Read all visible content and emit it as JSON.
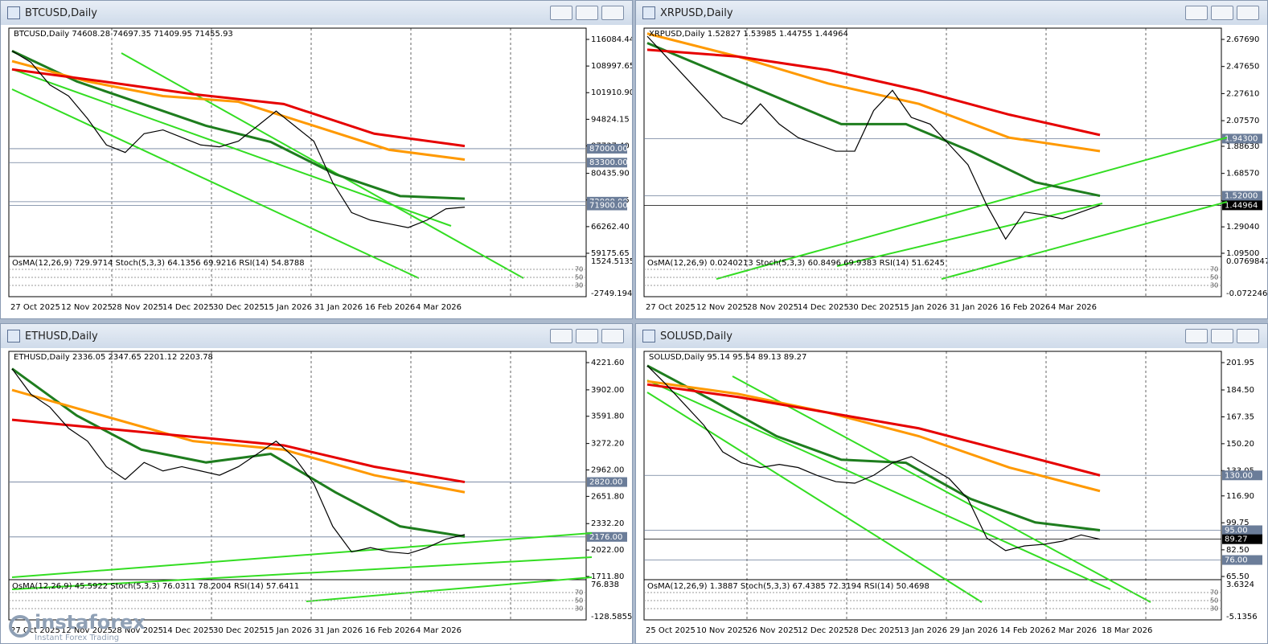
{
  "windows": [
    {
      "title": "BTCUSD,Daily",
      "info": "BTCUSD,Daily  74608.28 74697.35 71409.95 71455.93",
      "price_ticks": [
        "116084.44",
        "108997.65",
        "101910.90",
        "94824.15",
        "87737.40",
        "80435.90",
        "73349.15",
        "66262.40",
        "59175.65"
      ],
      "levels": [
        {
          "label": "87000.00",
          "color": "#6b7d99"
        },
        {
          "label": "83300.00",
          "color": "#6b7d99"
        },
        {
          "label": "72900.00",
          "color": "#6b7d99"
        },
        {
          "label": "71900.00",
          "color": "#6b7d99"
        }
      ],
      "indicator_info": "OsMA(12,26,9) 729.9714  Stoch(5,3,3) 64.1356 69.9216  RSI(14) 54.8788",
      "indicator_ticks": [
        "1524.5135",
        "-2749.1944"
      ],
      "osc_levels": [
        "70",
        "50",
        "30"
      ],
      "dates": [
        "27 Oct 2025",
        "12 Nov 2025",
        "28 Nov 2025",
        "14 Dec 2025",
        "30 Dec 2025",
        "15 Jan 2026",
        "31 Jan 2026",
        "16 Feb 2026",
        "4 Mar 2026"
      ],
      "close": [
        113000,
        110000,
        104000,
        101000,
        95000,
        88000,
        86000,
        91000,
        92000,
        90000,
        88000,
        87500,
        89000,
        93000,
        97000,
        93000,
        89000,
        78000,
        70000,
        68000,
        67000,
        66000,
        68000,
        71000,
        71455.93
      ],
      "ma": [
        {
          "color": "#1e7d1e",
          "values": [
            113000,
            104900,
            99000,
            93100,
            88800,
            80200,
            74400,
            73700
          ]
        },
        {
          "color": "#ff9900",
          "values": [
            110300,
            104900,
            101000,
            99500,
            93100,
            86700,
            84100
          ]
        },
        {
          "color": "#e60000",
          "values": [
            108100,
            104900,
            101500,
            98900,
            91000,
            87700
          ]
        }
      ]
    },
    {
      "title": "XRPUSD,Daily",
      "info": "XRPUSD,Daily  1.52827 1.53985 1.44755 1.44964",
      "price_ticks": [
        "2.67690",
        "2.47650",
        "2.27610",
        "2.07570",
        "1.88630",
        "1.68570",
        "1.48530",
        "1.29040",
        "1.09500"
      ],
      "levels": [
        {
          "label": "1.94300",
          "color": "#6b7d99"
        },
        {
          "label": "1.52000",
          "color": "#6b7d99"
        },
        {
          "label": "1.44964",
          "color": "#000000"
        }
      ],
      "indicator_info": "OsMA(12,26,9) 0.0240213  Stoch(5,3,3) 60.8496 69.9383  RSI(14) 51.6245",
      "indicator_ticks": [
        "0.0769847",
        "-0.072246"
      ],
      "osc_levels": [
        "70",
        "50",
        "30"
      ],
      "dates": [
        "27 Oct 2025",
        "12 Nov 2025",
        "28 Nov 2025",
        "14 Dec 2025",
        "30 Dec 2025",
        "15 Jan 2026",
        "31 Jan 2026",
        "16 Feb 2026",
        "4 Mar 2026"
      ],
      "close": [
        2.7,
        2.55,
        2.4,
        2.25,
        2.1,
        2.05,
        2.2,
        2.05,
        1.95,
        1.9,
        1.85,
        1.85,
        2.15,
        2.3,
        2.1,
        2.05,
        1.9,
        1.75,
        1.45,
        1.2,
        1.4,
        1.38,
        1.35,
        1.4,
        1.44964
      ],
      "ma": [
        {
          "color": "#1e7d1e",
          "values": [
            2.65,
            2.45,
            2.25,
            2.05,
            2.05,
            1.85,
            1.62,
            1.52
          ]
        },
        {
          "color": "#ff9900",
          "values": [
            2.72,
            2.55,
            2.35,
            2.2,
            1.95,
            1.85
          ]
        },
        {
          "color": "#e60000",
          "values": [
            2.6,
            2.55,
            2.45,
            2.3,
            2.12,
            1.97
          ]
        }
      ]
    },
    {
      "title": "ETHUSD,Daily",
      "info": "ETHUSD,Daily  2336.05 2347.65 2201.12 2203.78",
      "price_ticks": [
        "4221.60",
        "3902.00",
        "3591.80",
        "3272.20",
        "2962.00",
        "2651.80",
        "2332.20",
        "2022.00",
        "1711.80"
      ],
      "levels": [
        {
          "label": "2820.00",
          "color": "#6b7d99"
        },
        {
          "label": "2176.00",
          "color": "#6b7d99"
        }
      ],
      "indicator_info": "OsMA(12,26,9) 45.5922  Stoch(5,3,3) 76.0311 78.2004  RSI(14) 57.6411",
      "indicator_ticks": [
        "76.838",
        "-128.5855"
      ],
      "osc_levels": [
        "70",
        "50",
        "30"
      ],
      "dates": [
        "27 Oct 2025",
        "12 Nov 2025",
        "28 Nov 2025",
        "14 Dec 2025",
        "30 Dec 2025",
        "15 Jan 2026",
        "31 Jan 2026",
        "16 Feb 2026",
        "4 Mar 2026"
      ],
      "close": [
        4150,
        3850,
        3700,
        3450,
        3300,
        3000,
        2850,
        3050,
        2950,
        3000,
        2950,
        2900,
        3000,
        3150,
        3300,
        3100,
        2800,
        2300,
        2000,
        2050,
        2000,
        1980,
        2050,
        2150,
        2203.78
      ],
      "ma": [
        {
          "color": "#1e7d1e",
          "values": [
            4150,
            3600,
            3200,
            3050,
            3150,
            2700,
            2300,
            2180
          ]
        },
        {
          "color": "#ff9900",
          "values": [
            3900,
            3600,
            3300,
            3200,
            2900,
            2700
          ]
        },
        {
          "color": "#e60000",
          "values": [
            3550,
            3450,
            3350,
            3250,
            3000,
            2820
          ]
        }
      ],
      "watermark": {
        "brand": "instaforex",
        "tagline": "Instant Forex Trading"
      }
    },
    {
      "title": "SOLUSD,Daily",
      "info": "SOLUSD,Daily  95.14 95.54 89.13 89.27",
      "price_ticks": [
        "201.95",
        "184.50",
        "167.35",
        "150.20",
        "133.05",
        "116.90",
        "99.75",
        "82.50",
        "65.50"
      ],
      "levels": [
        {
          "label": "130.00",
          "color": "#6b7d99"
        },
        {
          "label": "95.00",
          "color": "#6b7d99"
        },
        {
          "label": "89.27",
          "color": "#000000"
        },
        {
          "label": "76.00",
          "color": "#6b7d99"
        }
      ],
      "indicator_info": "OsMA(12,26,9) 1.3887  Stoch(5,3,3) 67.4385 72.3194  RSI(14) 50.4698",
      "indicator_ticks": [
        "3.6324",
        "-5.1356"
      ],
      "osc_levels": [
        "70",
        "50",
        "30"
      ],
      "dates": [
        "25 Oct 2025",
        "10 Nov 2025",
        "26 Nov 2025",
        "12 Dec 2025",
        "28 Dec 2025",
        "13 Jan 2026",
        "29 Jan 2026",
        "14 Feb 2026",
        "2 Mar 2026",
        "18 Mar 2026"
      ],
      "close": [
        200,
        188,
        175,
        162,
        145,
        138,
        135,
        137,
        135,
        130,
        126,
        125,
        130,
        138,
        142,
        135,
        128,
        115,
        90,
        82,
        85,
        86,
        88,
        92,
        89.27
      ],
      "ma": [
        {
          "color": "#1e7d1e",
          "values": [
            200,
            178,
            155,
            140,
            138,
            115,
            100,
            95
          ]
        },
        {
          "color": "#ff9900",
          "values": [
            190,
            182,
            170,
            155,
            135,
            120
          ]
        },
        {
          "color": "#e60000",
          "values": [
            188,
            180,
            170,
            160,
            145,
            130
          ]
        }
      ]
    }
  ]
}
